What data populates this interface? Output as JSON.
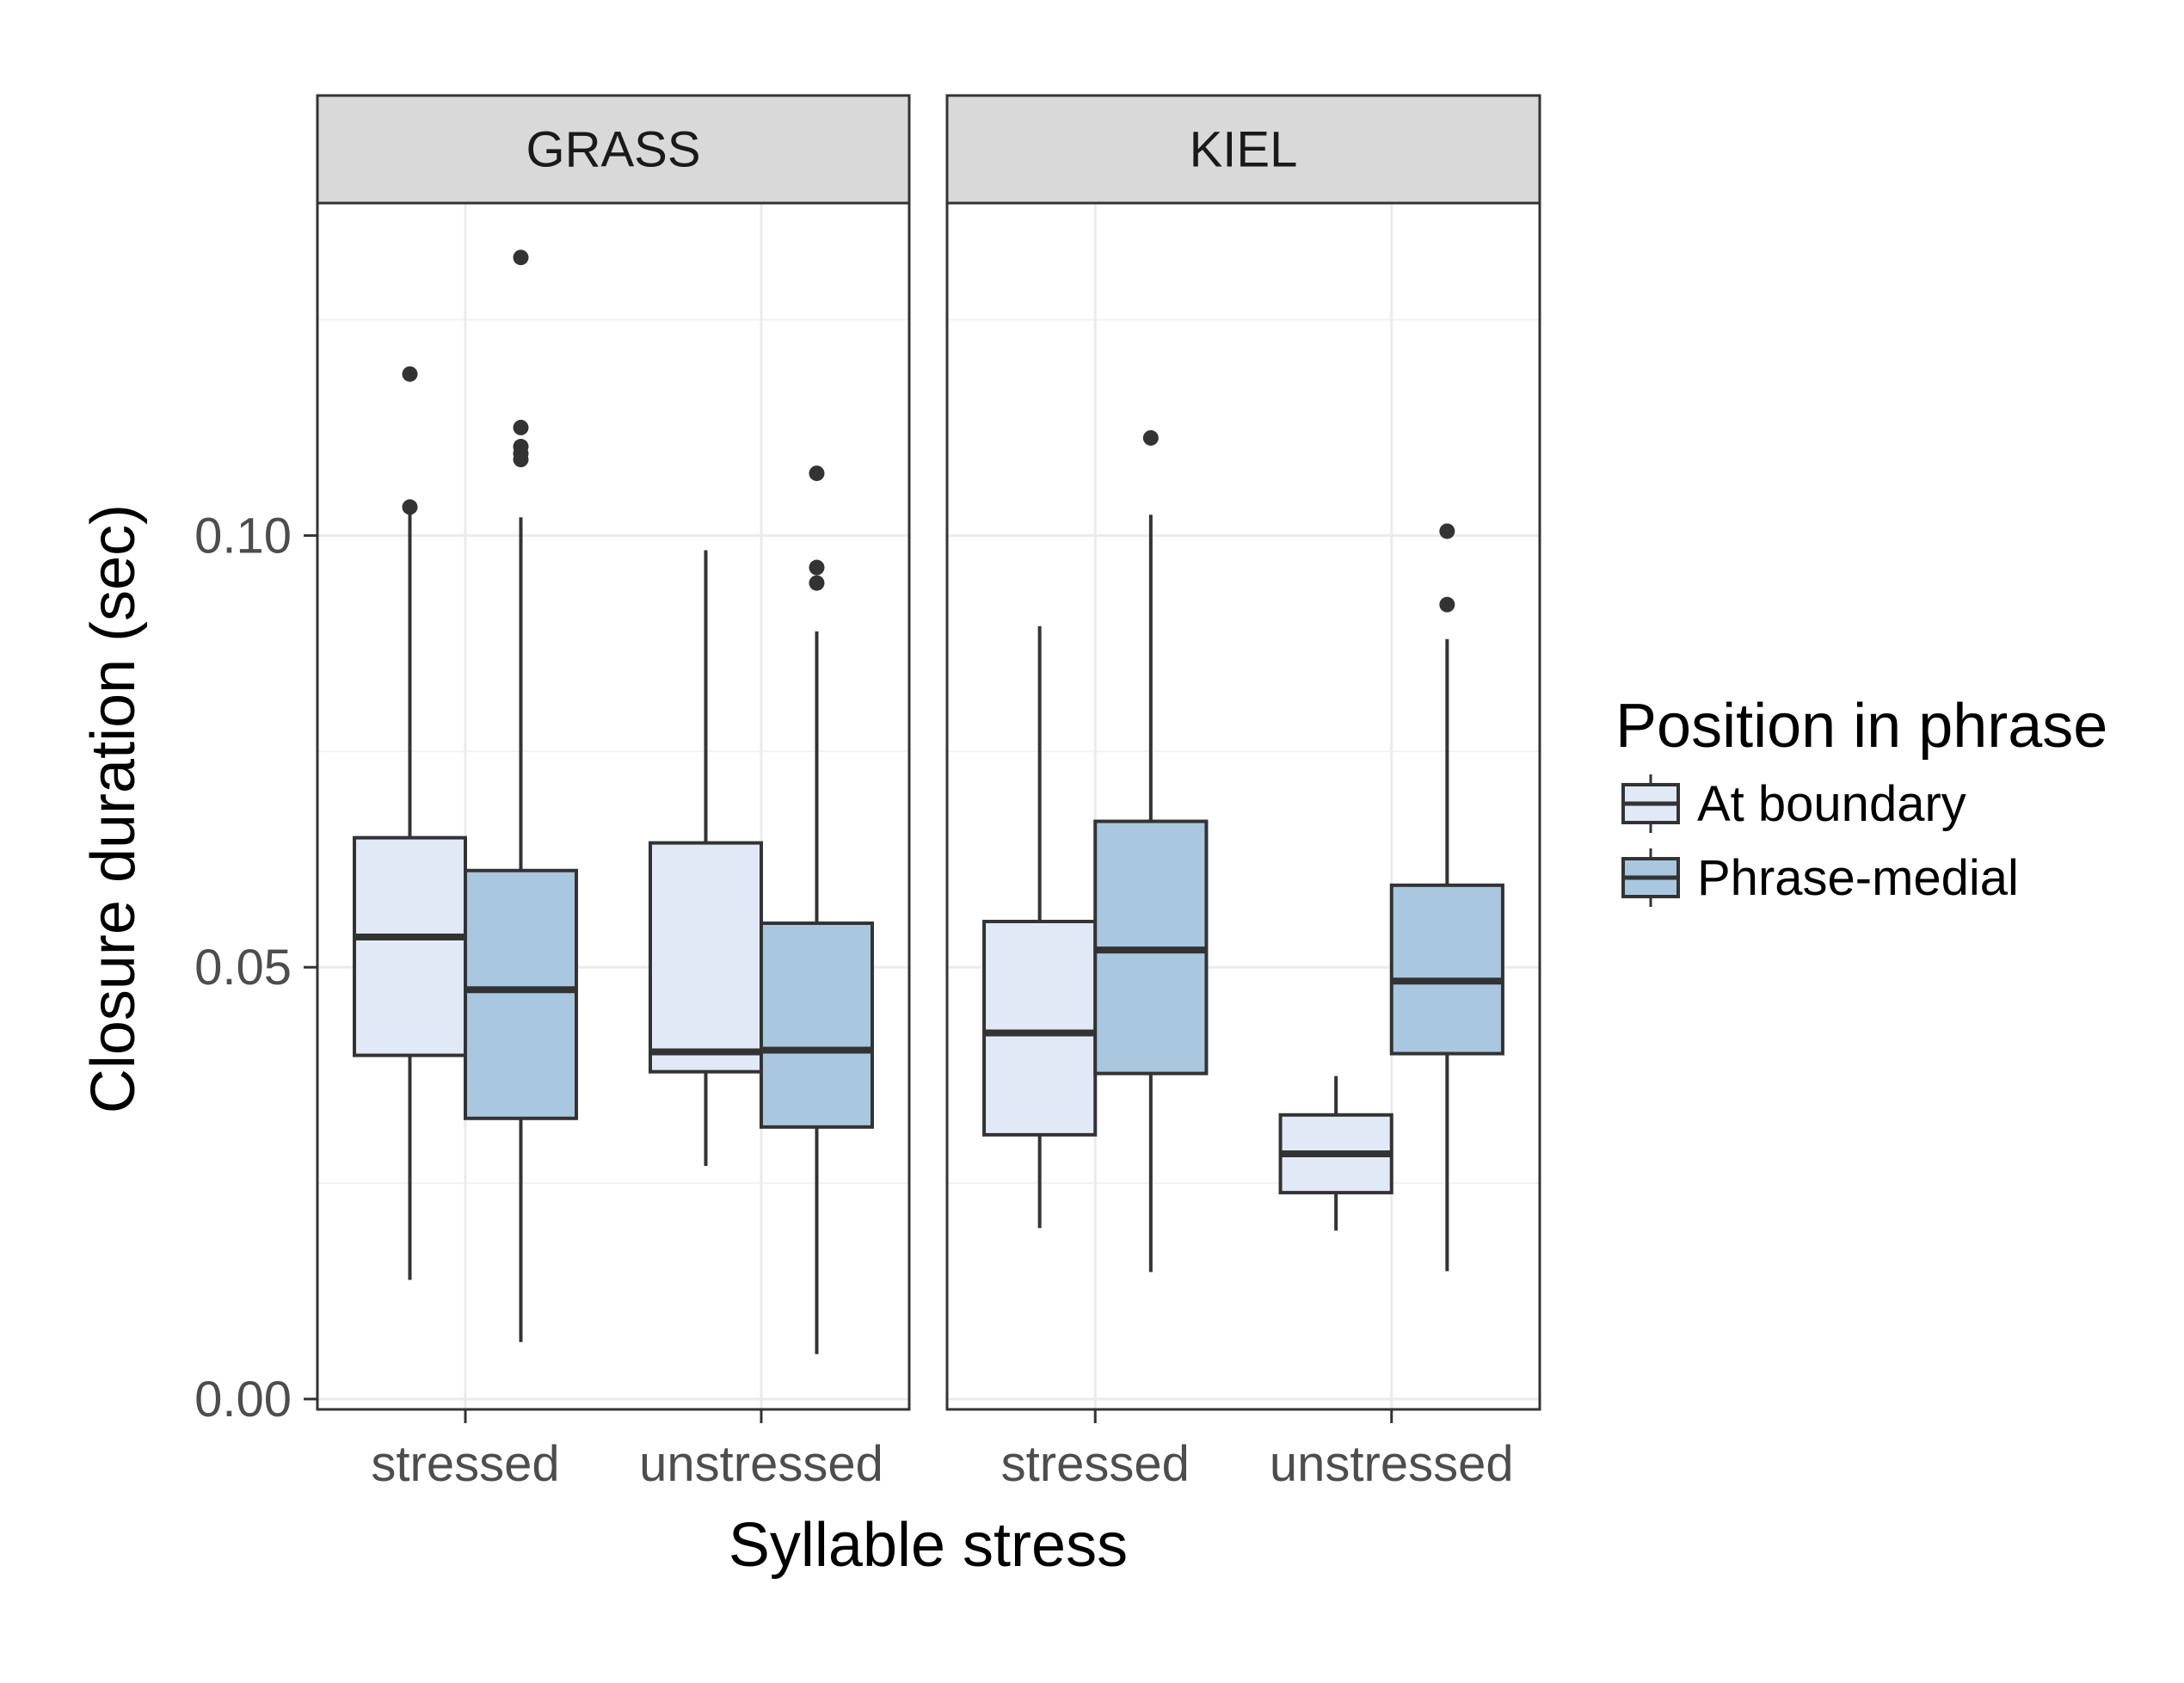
{
  "chart_data": {
    "type": "boxplot",
    "xlabel": "Syllable stress",
    "ylabel": "Closure duration (sec)",
    "ylim": [
      -0.0012,
      0.1385
    ],
    "yticks": [
      0.0,
      0.05,
      0.1
    ],
    "ytick_labels": [
      "0.00",
      "0.05",
      "0.10"
    ],
    "categories": [
      "stressed",
      "unstressed"
    ],
    "grid": true,
    "legend": {
      "title": "Position in phrase",
      "position": "right",
      "entries": [
        {
          "label": "At boundary",
          "color": "#e2e9f6"
        },
        {
          "label": "Phrase-medial",
          "color": "#a9c8df"
        }
      ]
    },
    "panels": [
      {
        "label": "GRASS",
        "groups": [
          {
            "category": "stressed",
            "series": "At boundary",
            "lower_whisker": 0.0138,
            "q1": 0.0398,
            "median": 0.0535,
            "q3": 0.065,
            "upper_whisker": 0.103,
            "outliers": [
              0.1187,
              0.1033
            ]
          },
          {
            "category": "stressed",
            "series": "Phrase-medial",
            "lower_whisker": 0.0066,
            "q1": 0.0325,
            "median": 0.0474,
            "q3": 0.0612,
            "upper_whisker": 0.1021,
            "outliers": [
              0.1322,
              0.1125,
              0.1103,
              0.1095,
              0.1088
            ]
          },
          {
            "category": "unstressed",
            "series": "At boundary",
            "lower_whisker": 0.027,
            "q1": 0.0379,
            "median": 0.0402,
            "q3": 0.0644,
            "upper_whisker": 0.0983,
            "outliers": []
          },
          {
            "category": "unstressed",
            "series": "Phrase-medial",
            "lower_whisker": 0.0052,
            "q1": 0.0315,
            "median": 0.0404,
            "q3": 0.0551,
            "upper_whisker": 0.0889,
            "outliers": [
              0.1072,
              0.0963,
              0.0945
            ]
          }
        ]
      },
      {
        "label": "KIEL",
        "groups": [
          {
            "category": "stressed",
            "series": "At boundary",
            "lower_whisker": 0.0198,
            "q1": 0.0306,
            "median": 0.0424,
            "q3": 0.0553,
            "upper_whisker": 0.0895,
            "outliers": []
          },
          {
            "category": "stressed",
            "series": "Phrase-medial",
            "lower_whisker": 0.0147,
            "q1": 0.0377,
            "median": 0.052,
            "q3": 0.0669,
            "upper_whisker": 0.1024,
            "outliers": [
              0.1113
            ]
          },
          {
            "category": "unstressed",
            "series": "At boundary",
            "lower_whisker": 0.0195,
            "q1": 0.0239,
            "median": 0.0284,
            "q3": 0.0329,
            "upper_whisker": 0.0374,
            "outliers": []
          },
          {
            "category": "unstressed",
            "series": "Phrase-medial",
            "lower_whisker": 0.0148,
            "q1": 0.04,
            "median": 0.0484,
            "q3": 0.0595,
            "upper_whisker": 0.088,
            "outliers": [
              0.1005,
              0.092
            ]
          }
        ]
      }
    ]
  }
}
